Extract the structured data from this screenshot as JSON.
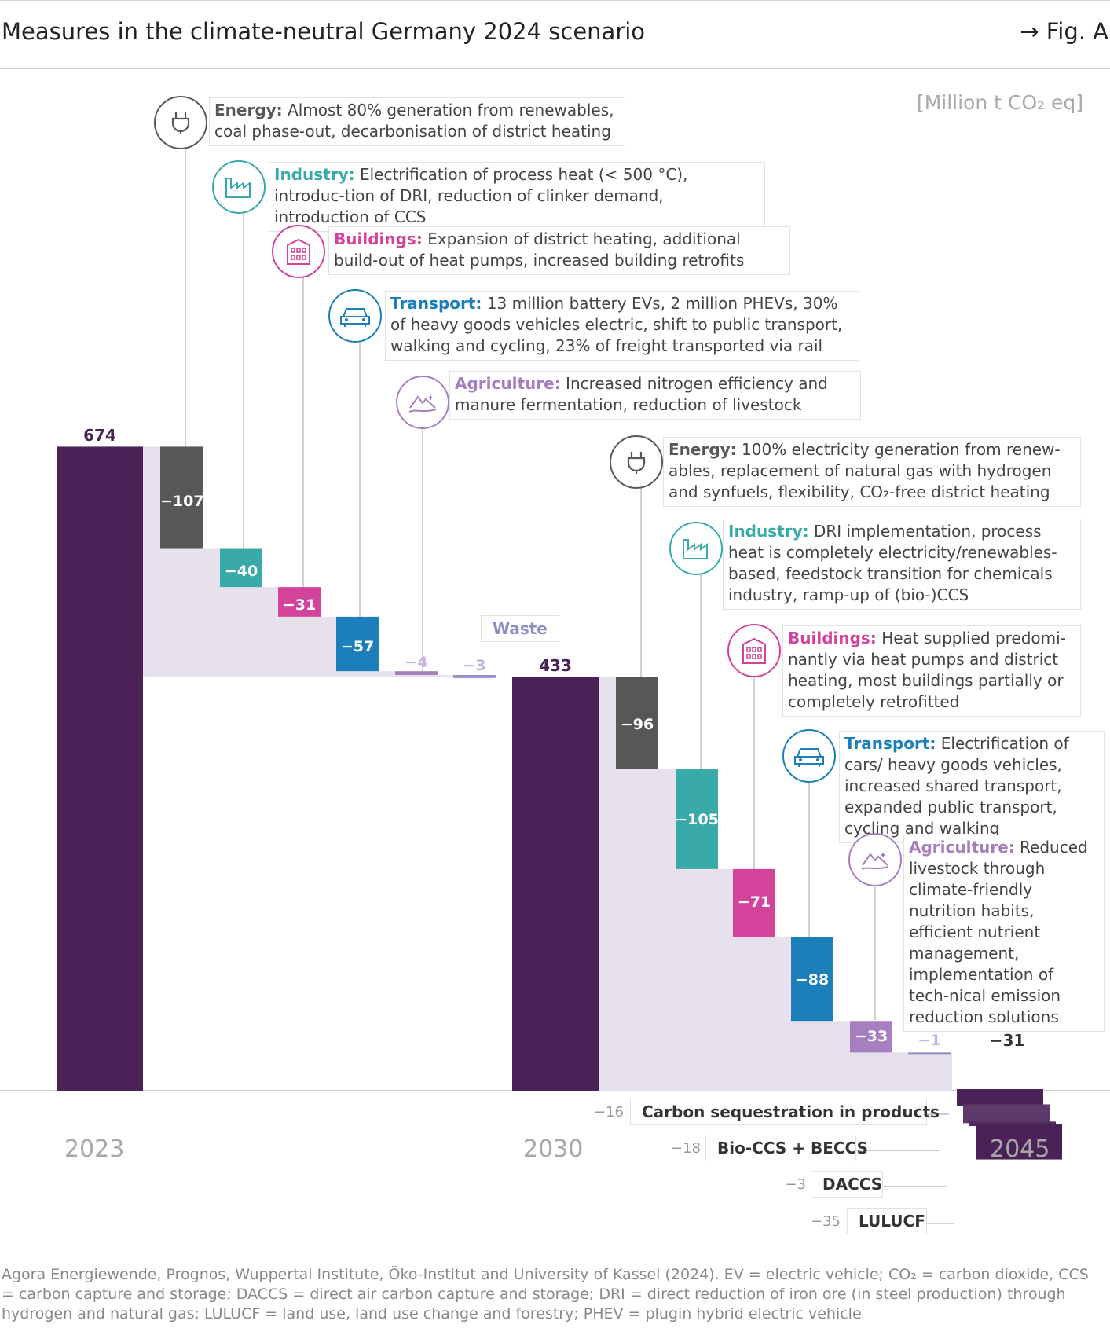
{
  "header": {
    "title": "Measures in the climate-neutral Germany 2024 scenario",
    "figure_ref": "→ Fig. A"
  },
  "unit_label": "[Million t CO₂ eq]",
  "colors": {
    "total": "#4a2257",
    "energy": "#575757",
    "industry": "#3aaaa8",
    "buildings": "#d3439b",
    "transport": "#1d7fb9",
    "agriculture": "#a77fbf",
    "waste": "#8e8ec6",
    "fill": "#e7e1ee",
    "seq1": "#4a2257",
    "seq2": "#5d3a6b",
    "seq3": "#4f2b5e",
    "seq4": "#4a2257"
  },
  "chart_data": {
    "type": "waterfall",
    "title": "Measures in the climate-neutral Germany 2024 scenario",
    "ylabel": "Million t CO₂ eq",
    "years": [
      "2023",
      "2030",
      "2045"
    ],
    "totals": [
      {
        "year": "2023",
        "value": 674,
        "label": "674"
      },
      {
        "year": "2030",
        "value": 433,
        "label": "433"
      },
      {
        "year": "2045",
        "value": -31,
        "label": "−31"
      }
    ],
    "steps_2023_2030": [
      {
        "sector": "Energy",
        "value": -107,
        "label": "−107"
      },
      {
        "sector": "Industry",
        "value": -40,
        "label": "−40"
      },
      {
        "sector": "Buildings",
        "value": -31,
        "label": "−31"
      },
      {
        "sector": "Transport",
        "value": -57,
        "label": "−57"
      },
      {
        "sector": "Agriculture",
        "value": -4,
        "label": "−4"
      },
      {
        "sector": "Waste",
        "value": -3,
        "label": "−3"
      }
    ],
    "steps_2030_2045": [
      {
        "sector": "Energy",
        "value": -96,
        "label": "−96"
      },
      {
        "sector": "Industry",
        "value": -105,
        "label": "−105"
      },
      {
        "sector": "Buildings",
        "value": -71,
        "label": "−71"
      },
      {
        "sector": "Transport",
        "value": -88,
        "label": "−88"
      },
      {
        "sector": "Agriculture",
        "value": -33,
        "label": "−33"
      },
      {
        "sector": "Waste",
        "value": -1,
        "label": "−1"
      }
    ],
    "sequestration_2045": [
      {
        "name": "Carbon sequestration in products",
        "value": -16,
        "label": "−16"
      },
      {
        "name": "Bio-CCS + BECCS",
        "value": -18,
        "label": "−18"
      },
      {
        "name": "DACCS",
        "value": -3,
        "label": "−3"
      },
      {
        "name": "LULUCF",
        "value": -35,
        "label": "−35"
      }
    ]
  },
  "waste_label": "Waste",
  "annotations_2030": [
    {
      "sector": "Energy:",
      "text": "Almost 80% generation from renewables, coal phase-out, decarbonisation of district heating"
    },
    {
      "sector": "Industry:",
      "text": "Electrification of process heat (< 500 °C), introduc-tion of DRI, reduction of clinker demand, introduction of CCS"
    },
    {
      "sector": "Buildings:",
      "text": "Expansion of district heating, additional build-out of heat pumps, increased building retrofits"
    },
    {
      "sector": "Transport:",
      "text": "13 million battery EVs, 2 million PHEVs, 30% of heavy goods vehicles electric, shift to public transport, walking and cycling, 23% of freight transported via rail"
    },
    {
      "sector": "Agriculture:",
      "text": "Increased nitrogen efficiency and manure fermentation, reduction of livestock"
    }
  ],
  "annotations_2045": [
    {
      "sector": "Energy:",
      "text": "100% electricity generation from renew-ables, replacement of natural gas with hydrogen and synfuels, flexibility, CO₂-free district heating"
    },
    {
      "sector": "Industry:",
      "text": "DRI implementation, process heat is completely electricity/renewables-based, feedstock transition for chemicals industry, ramp-up of (bio-)CCS"
    },
    {
      "sector": "Buildings:",
      "text": "Heat supplied predomi-nantly via heat pumps and district heating, most buildings partially or completely retrofitted"
    },
    {
      "sector": "Transport:",
      "text": "Electrification of cars/ heavy goods vehicles, increased shared transport, expanded public transport, cycling and walking"
    },
    {
      "sector": "Agriculture:",
      "text": "Reduced livestock through climate-friendly nutrition habits, efficient nutrient management, implementation of tech-nical emission reduction solutions"
    }
  ],
  "footer": "Agora Energiewende, Prognos, Wuppertal Institute, Öko-Institut and University of Kassel (2024). EV = electric vehicle; CO₂ = carbon dioxide, CCS = carbon capture and storage; DACCS = direct air carbon capture and storage; DRI = direct reduction of iron ore (in steel production) through hydrogen and natural gas; LULUCF = land use, land use change and forestry; PHEV = plugin hybrid electric vehicle"
}
